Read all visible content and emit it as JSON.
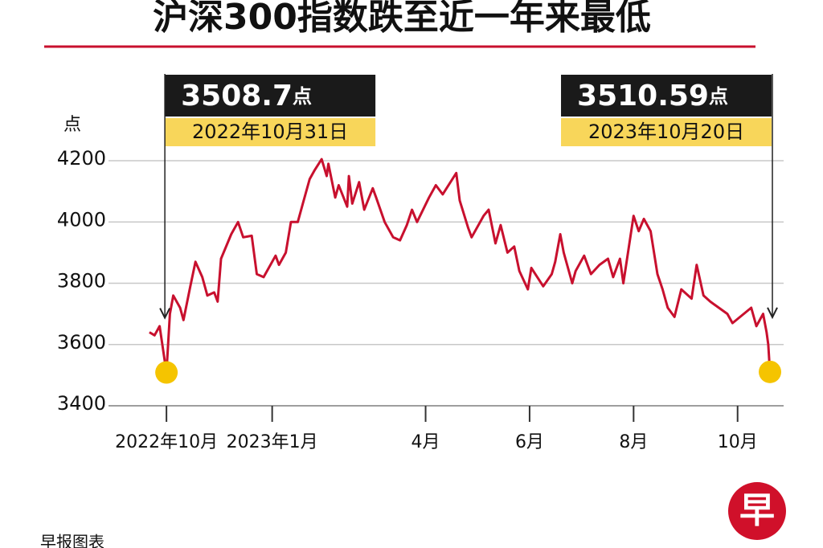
{
  "chart_data": {
    "type": "line",
    "title": "沪深300指数跌至近一年来最低",
    "ylabel": "点",
    "source": "早报图表",
    "logo": "早",
    "color": "#c8102e",
    "grid": true,
    "xlim": [
      "2022-09-27",
      "2023-10-28"
    ],
    "ylim": [
      3400,
      4200
    ],
    "yticks": [
      3400,
      3600,
      3800,
      4000,
      4200
    ],
    "xticks": [
      {
        "value": "2022-10-31",
        "label": "2022年10月"
      },
      {
        "value": "2023-01-01",
        "label": "2023年1月"
      },
      {
        "value": "2023-04-01",
        "label": "4月"
      },
      {
        "value": "2023-06-01",
        "label": "6月"
      },
      {
        "value": "2023-08-01",
        "label": "8月"
      },
      {
        "value": "2023-10-01",
        "label": "10月"
      }
    ],
    "annotations": [
      {
        "value": 3508.7,
        "label": "2022年10月31日"
      },
      {
        "value": 3510.59,
        "label": "2023年10月20日"
      }
    ],
    "x": [
      "2022-10-21",
      "2022-10-24",
      "2022-10-27",
      "2022-10-31",
      "2022-11-02",
      "2022-11-04",
      "2022-11-08",
      "2022-11-10",
      "2022-11-14",
      "2022-11-17",
      "2022-11-21",
      "2022-11-24",
      "2022-11-28",
      "2022-11-30",
      "2022-12-02",
      "2022-12-08",
      "2022-12-12",
      "2022-12-15",
      "2022-12-20",
      "2022-12-23",
      "2022-12-27",
      "2023-01-03",
      "2023-01-05",
      "2023-01-09",
      "2023-01-12",
      "2023-01-16",
      "2023-01-19",
      "2023-01-23",
      "2023-01-26",
      "2023-01-30",
      "2023-02-02",
      "2023-02-03",
      "2023-02-07",
      "2023-02-09",
      "2023-02-14",
      "2023-02-15",
      "2023-02-17",
      "2023-02-21",
      "2023-02-24",
      "2023-03-01",
      "2023-03-03",
      "2023-03-08",
      "2023-03-13",
      "2023-03-17",
      "2023-03-21",
      "2023-03-24",
      "2023-03-27",
      "2023-04-03",
      "2023-04-07",
      "2023-04-11",
      "2023-04-19",
      "2023-04-21",
      "2023-04-26",
      "2023-04-28",
      "2023-05-05",
      "2023-05-08",
      "2023-05-12",
      "2023-05-15",
      "2023-05-19",
      "2023-05-23",
      "2023-05-26",
      "2023-05-31",
      "2023-06-02",
      "2023-06-09",
      "2023-06-14",
      "2023-06-16",
      "2023-06-19",
      "2023-06-21",
      "2023-06-26",
      "2023-06-28",
      "2023-07-03",
      "2023-07-07",
      "2023-07-12",
      "2023-07-17",
      "2023-07-20",
      "2023-07-24",
      "2023-07-26",
      "2023-08-01",
      "2023-08-04",
      "2023-08-07",
      "2023-08-11",
      "2023-08-15",
      "2023-08-18",
      "2023-08-21",
      "2023-08-25",
      "2023-08-29",
      "2023-09-04",
      "2023-09-07",
      "2023-09-11",
      "2023-09-15",
      "2023-09-20",
      "2023-09-25",
      "2023-09-28",
      "2023-10-09",
      "2023-10-12",
      "2023-10-16",
      "2023-10-18",
      "2023-10-19",
      "2023-10-20"
    ],
    "values": [
      3640,
      3630,
      3660,
      3508.7,
      3700,
      3760,
      3720,
      3680,
      3790,
      3870,
      3820,
      3760,
      3770,
      3740,
      3880,
      3960,
      4000,
      3950,
      3955,
      3830,
      3820,
      3890,
      3860,
      3900,
      4000,
      4000,
      4060,
      4140,
      4170,
      4205,
      4150,
      4190,
      4080,
      4120,
      4050,
      4150,
      4060,
      4130,
      4040,
      4110,
      4080,
      4000,
      3950,
      3940,
      3990,
      4040,
      4000,
      4080,
      4120,
      4090,
      4160,
      4070,
      3980,
      3950,
      4020,
      4040,
      3930,
      3990,
      3900,
      3920,
      3840,
      3780,
      3850,
      3790,
      3830,
      3870,
      3960,
      3900,
      3800,
      3840,
      3890,
      3830,
      3860,
      3880,
      3820,
      3880,
      3800,
      4020,
      3970,
      4010,
      3970,
      3830,
      3780,
      3720,
      3690,
      3780,
      3750,
      3860,
      3760,
      3740,
      3720,
      3700,
      3670,
      3720,
      3660,
      3700,
      3640,
      3600,
      3510.59
    ]
  }
}
